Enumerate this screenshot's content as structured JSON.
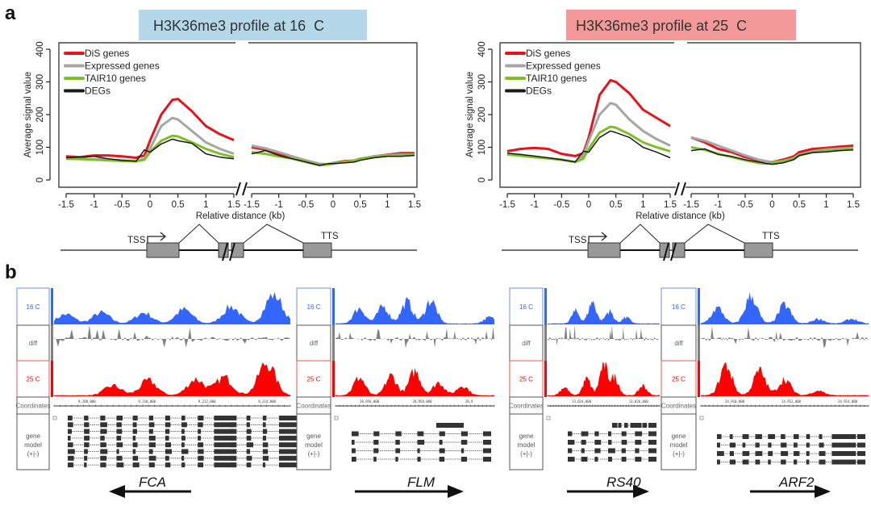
{
  "panel_a": {
    "label": "a",
    "charts": [
      {
        "title": "H3K36me3 profile at 16  C",
        "title_bg": "#b4d7ea"
      },
      {
        "title": "H3K36me3 profile at 25  C",
        "title_bg": "#f4999a"
      }
    ],
    "diagram": {
      "tss": "TSS",
      "tts": "TTS"
    }
  },
  "chart_data": [
    {
      "type": "line",
      "title": "H3K36me3 profile at 16  C",
      "xlabel": "Relative distance (kb)",
      "ylabel": "Average signal value",
      "ylim": [
        0,
        400
      ],
      "yticks": [
        "0",
        "100",
        "200",
        "300",
        "400"
      ],
      "xticks": [
        "-1.5",
        "-1",
        "-0.5",
        "0",
        "0.5",
        "1",
        "1.5"
      ],
      "segments": [
        "TSS",
        "TTS"
      ],
      "x": [
        -1.5,
        -1.25,
        -1,
        -0.75,
        -0.5,
        -0.25,
        -0.1,
        0,
        0.2,
        0.4,
        0.5,
        0.75,
        1,
        1.25,
        1.5
      ],
      "legend_position": "top-left",
      "series": [
        {
          "name": "DiS genes",
          "color": "#e3141c",
          "TSS": [
            72,
            70,
            75,
            75,
            72,
            68,
            75,
            120,
            200,
            245,
            248,
            210,
            165,
            140,
            122
          ],
          "TTS": [
            100,
            93,
            80,
            68,
            55,
            45,
            48,
            52,
            57,
            60,
            65,
            72,
            77,
            82,
            82
          ]
        },
        {
          "name": "Expressed genes",
          "color": "#a6a6a6",
          "TSS": [
            65,
            65,
            63,
            62,
            60,
            58,
            65,
            95,
            165,
            190,
            185,
            150,
            115,
            95,
            80
          ],
          "TTS": [
            105,
            97,
            85,
            72,
            60,
            50,
            48,
            52,
            55,
            60,
            65,
            72,
            76,
            78,
            78
          ]
        },
        {
          "name": "TAIR10 genes",
          "color": "#7fbf26",
          "TSS": [
            65,
            64,
            62,
            60,
            58,
            57,
            62,
            85,
            120,
            135,
            133,
            115,
            95,
            80,
            70
          ],
          "TTS": [
            85,
            80,
            72,
            65,
            55,
            45,
            47,
            50,
            55,
            60,
            65,
            70,
            74,
            76,
            78
          ]
        },
        {
          "name": "DEGs",
          "color": "#1a1a1a",
          "TSS": [
            68,
            70,
            72,
            65,
            60,
            57,
            92,
            85,
            110,
            125,
            120,
            112,
            80,
            70,
            65
          ],
          "TTS": [
            80,
            90,
            75,
            65,
            55,
            45,
            50,
            50,
            52,
            55,
            60,
            68,
            72,
            72,
            75
          ]
        }
      ]
    },
    {
      "type": "line",
      "title": "H3K36me3 profile at 25  C",
      "xlabel": "Relative distance (kb)",
      "ylabel": "Average signal value",
      "ylim": [
        0,
        400
      ],
      "yticks": [
        "0",
        "100",
        "200",
        "300",
        "400"
      ],
      "xticks": [
        "-1.5",
        "-1",
        "-0.5",
        "0",
        "0.5",
        "1",
        "1.5"
      ],
      "segments": [
        "TSS",
        "TTS"
      ],
      "x": [
        -1.5,
        -1.25,
        -1,
        -0.75,
        -0.5,
        -0.25,
        -0.1,
        0,
        0.2,
        0.4,
        0.5,
        0.75,
        1,
        1.25,
        1.5
      ],
      "legend_position": "top-left",
      "series": [
        {
          "name": "DiS genes",
          "color": "#e3141c",
          "TSS": [
            88,
            95,
            98,
            95,
            80,
            73,
            82,
            130,
            260,
            305,
            300,
            265,
            215,
            190,
            165
          ],
          "TTS": [
            130,
            115,
            95,
            85,
            70,
            60,
            55,
            55,
            62,
            72,
            85,
            95,
            98,
            102,
            105
          ]
        },
        {
          "name": "Expressed genes",
          "color": "#a6a6a6",
          "TSS": [
            80,
            75,
            70,
            66,
            62,
            55,
            75,
            120,
            200,
            235,
            230,
            185,
            150,
            125,
            105
          ],
          "TTS": [
            130,
            120,
            105,
            90,
            75,
            62,
            57,
            55,
            58,
            67,
            78,
            88,
            93,
            96,
            98
          ]
        },
        {
          "name": "TAIR10 genes",
          "color": "#7fbf26",
          "TSS": [
            78,
            74,
            70,
            66,
            62,
            55,
            65,
            95,
            145,
            163,
            160,
            140,
            115,
            100,
            88
          ],
          "TTS": [
            100,
            92,
            80,
            70,
            60,
            52,
            50,
            52,
            56,
            65,
            75,
            85,
            88,
            92,
            95
          ]
        },
        {
          "name": "DEGs",
          "color": "#1a1a1a",
          "TSS": [
            82,
            78,
            73,
            68,
            62,
            55,
            88,
            85,
            130,
            150,
            145,
            130,
            100,
            85,
            68
          ],
          "TTS": [
            90,
            95,
            78,
            72,
            62,
            55,
            50,
            48,
            52,
            62,
            75,
            84,
            86,
            90,
            92
          ]
        }
      ]
    }
  ],
  "panel_b": {
    "label": "b",
    "track_labels": {
      "t16": "16 C",
      "diff": "diff",
      "t25": "25 C",
      "coord": "Coordinates",
      "gene": [
        "gene",
        "model",
        "(+|-)"
      ]
    },
    "colors": {
      "t16": "#3366ff",
      "diff": "#808080",
      "t25": "#ff0000"
    },
    "browsers": [
      {
        "gene": "FCA",
        "direction": "left",
        "coordinates": [
          "9,208,000",
          "9,210,000",
          "9,212,000",
          "9,214,000"
        ]
      },
      {
        "gene": "FLM",
        "direction": "right",
        "coordinates": [
          "28,956,000",
          "28,958,000",
          "28,9"
        ]
      },
      {
        "gene": "RS40",
        "direction": "right",
        "coordinates": [
          "13,024,000",
          "13,026,000"
        ]
      },
      {
        "gene": "ARF2",
        "direction": "right",
        "coordinates": [
          "24,910,000",
          "24,912,000",
          "24,914,000"
        ]
      }
    ]
  }
}
